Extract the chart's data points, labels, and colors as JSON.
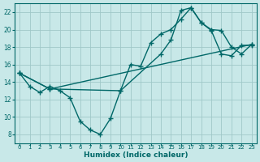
{
  "xlabel": "Humidex (Indice chaleur)",
  "ylabel": "",
  "background_color": "#c8e8e8",
  "grid_color": "#a0c8c8",
  "line_color": "#006868",
  "xlim": [
    -0.5,
    23.5
  ],
  "ylim": [
    7,
    23
  ],
  "xticks": [
    0,
    1,
    2,
    3,
    4,
    5,
    6,
    7,
    8,
    9,
    10,
    11,
    12,
    13,
    14,
    15,
    16,
    17,
    18,
    19,
    20,
    21,
    22,
    23
  ],
  "yticks": [
    8,
    10,
    12,
    14,
    16,
    18,
    20,
    22
  ],
  "line1_x": [
    0,
    1,
    2,
    3,
    4,
    5,
    6,
    7,
    8,
    9,
    10,
    11,
    12,
    13,
    14,
    15,
    16,
    17,
    18,
    19,
    20,
    21,
    22,
    23
  ],
  "line1_y": [
    15.0,
    13.5,
    12.8,
    13.5,
    13.0,
    12.2,
    9.5,
    8.5,
    8.0,
    9.8,
    13.0,
    16.0,
    15.8,
    18.5,
    19.5,
    20.0,
    21.2,
    22.5,
    20.8,
    19.9,
    17.2,
    17.0,
    18.2,
    18.2
  ],
  "line2_x": [
    0,
    3,
    23
  ],
  "line2_y": [
    15.0,
    13.2,
    18.3
  ],
  "line3_x": [
    0,
    3,
    10,
    14,
    15,
    16,
    17,
    18,
    19,
    20,
    21,
    22,
    23
  ],
  "line3_y": [
    15.0,
    13.2,
    13.0,
    17.2,
    18.8,
    22.2,
    22.5,
    20.8,
    20.0,
    19.9,
    18.0,
    17.2,
    18.3
  ],
  "marker": "+",
  "marker_size": 4,
  "line_width": 1.0
}
